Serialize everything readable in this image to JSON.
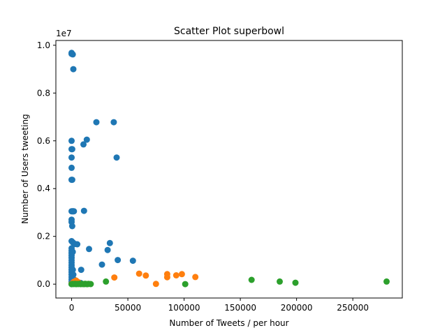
{
  "chart_data": {
    "type": "scatter",
    "title": "Scatter Plot superbowl",
    "xlabel": "Number of Tweets / per hour",
    "ylabel": "Number of Users tweeting",
    "y_multiplier_label": "1e7",
    "xlim": [
      -14000,
      294000
    ],
    "ylim": [
      -580000,
      10200000
    ],
    "grid": false,
    "x_ticks": [
      0,
      50000,
      100000,
      150000,
      200000,
      250000
    ],
    "x_tick_labels": [
      "0",
      "50000",
      "100000",
      "150000",
      "200000",
      "250000"
    ],
    "y_ticks": [
      0,
      2000000,
      4000000,
      6000000,
      8000000,
      10000000
    ],
    "y_tick_labels": [
      "0.0",
      "0.2",
      "0.4",
      "0.6",
      "0.8",
      "1.0"
    ],
    "series": [
      {
        "color": "#1f77b4",
        "points": [
          [
            0,
            9680000
          ],
          [
            0,
            9640000
          ],
          [
            1000,
            9620000
          ],
          [
            1500,
            9000000
          ],
          [
            0,
            6000000
          ],
          [
            0,
            5650000
          ],
          [
            500,
            5650000
          ],
          [
            0,
            5300000
          ],
          [
            0,
            4870000
          ],
          [
            0,
            4370000
          ],
          [
            500,
            4370000
          ],
          [
            0,
            3050000
          ],
          [
            500,
            3050000
          ],
          [
            1000,
            3050000
          ],
          [
            1500,
            3050000
          ],
          [
            2000,
            3050000
          ],
          [
            0,
            2700000
          ],
          [
            0,
            2600000
          ],
          [
            500,
            2430000
          ],
          [
            0,
            1800000
          ],
          [
            1000,
            1750000
          ],
          [
            2000,
            1700000
          ],
          [
            3000,
            1680000
          ],
          [
            5000,
            1670000
          ],
          [
            0,
            1500000
          ],
          [
            0,
            1400000
          ],
          [
            0,
            1300000
          ],
          [
            0,
            1200000
          ],
          [
            0,
            1100000
          ],
          [
            0,
            1000000
          ],
          [
            0,
            900000
          ],
          [
            0,
            800000
          ],
          [
            0,
            700000
          ],
          [
            0,
            600000
          ],
          [
            0,
            500000
          ],
          [
            0,
            400000
          ],
          [
            0,
            300000
          ],
          [
            0,
            200000
          ],
          [
            0,
            100000
          ],
          [
            0,
            0
          ],
          [
            1000,
            1350000
          ],
          [
            1000,
            600000
          ],
          [
            1500,
            400000
          ],
          [
            2000,
            200000
          ],
          [
            3000,
            100000
          ],
          [
            22000,
            6780000
          ],
          [
            37500,
            6780000
          ],
          [
            13500,
            6050000
          ],
          [
            10500,
            5850000
          ],
          [
            40000,
            5300000
          ],
          [
            11000,
            3070000
          ],
          [
            15500,
            1470000
          ],
          [
            34000,
            1720000
          ],
          [
            32000,
            1430000
          ],
          [
            41000,
            1010000
          ],
          [
            54500,
            980000
          ],
          [
            8500,
            600000
          ],
          [
            27000,
            820000
          ],
          [
            5000,
            100000
          ],
          [
            8000,
            50000
          ]
        ]
      },
      {
        "color": "#ff7f0e",
        "points": [
          [
            0,
            20000
          ],
          [
            2000,
            100000
          ],
          [
            4000,
            150000
          ],
          [
            6000,
            80000
          ],
          [
            38000,
            280000
          ],
          [
            60000,
            440000
          ],
          [
            66000,
            360000
          ],
          [
            75000,
            10000
          ],
          [
            85000,
            420000
          ],
          [
            85000,
            290000
          ],
          [
            93000,
            370000
          ],
          [
            98000,
            420000
          ],
          [
            110000,
            300000
          ]
        ]
      },
      {
        "color": "#2ca02c",
        "points": [
          [
            0,
            0
          ],
          [
            1000,
            10000
          ],
          [
            2000,
            5000
          ],
          [
            3000,
            15000
          ],
          [
            4000,
            0
          ],
          [
            5000,
            10000
          ],
          [
            6000,
            5000
          ],
          [
            7000,
            20000
          ],
          [
            8000,
            0
          ],
          [
            9000,
            10000
          ],
          [
            10000,
            5000
          ],
          [
            11000,
            0
          ],
          [
            12000,
            15000
          ],
          [
            13000,
            5000
          ],
          [
            14000,
            0
          ],
          [
            15000,
            10000
          ],
          [
            17000,
            5000
          ],
          [
            30500,
            110000
          ],
          [
            101000,
            0
          ],
          [
            160000,
            180000
          ],
          [
            185000,
            110000
          ],
          [
            199000,
            60000
          ],
          [
            280000,
            110000
          ]
        ]
      }
    ]
  }
}
